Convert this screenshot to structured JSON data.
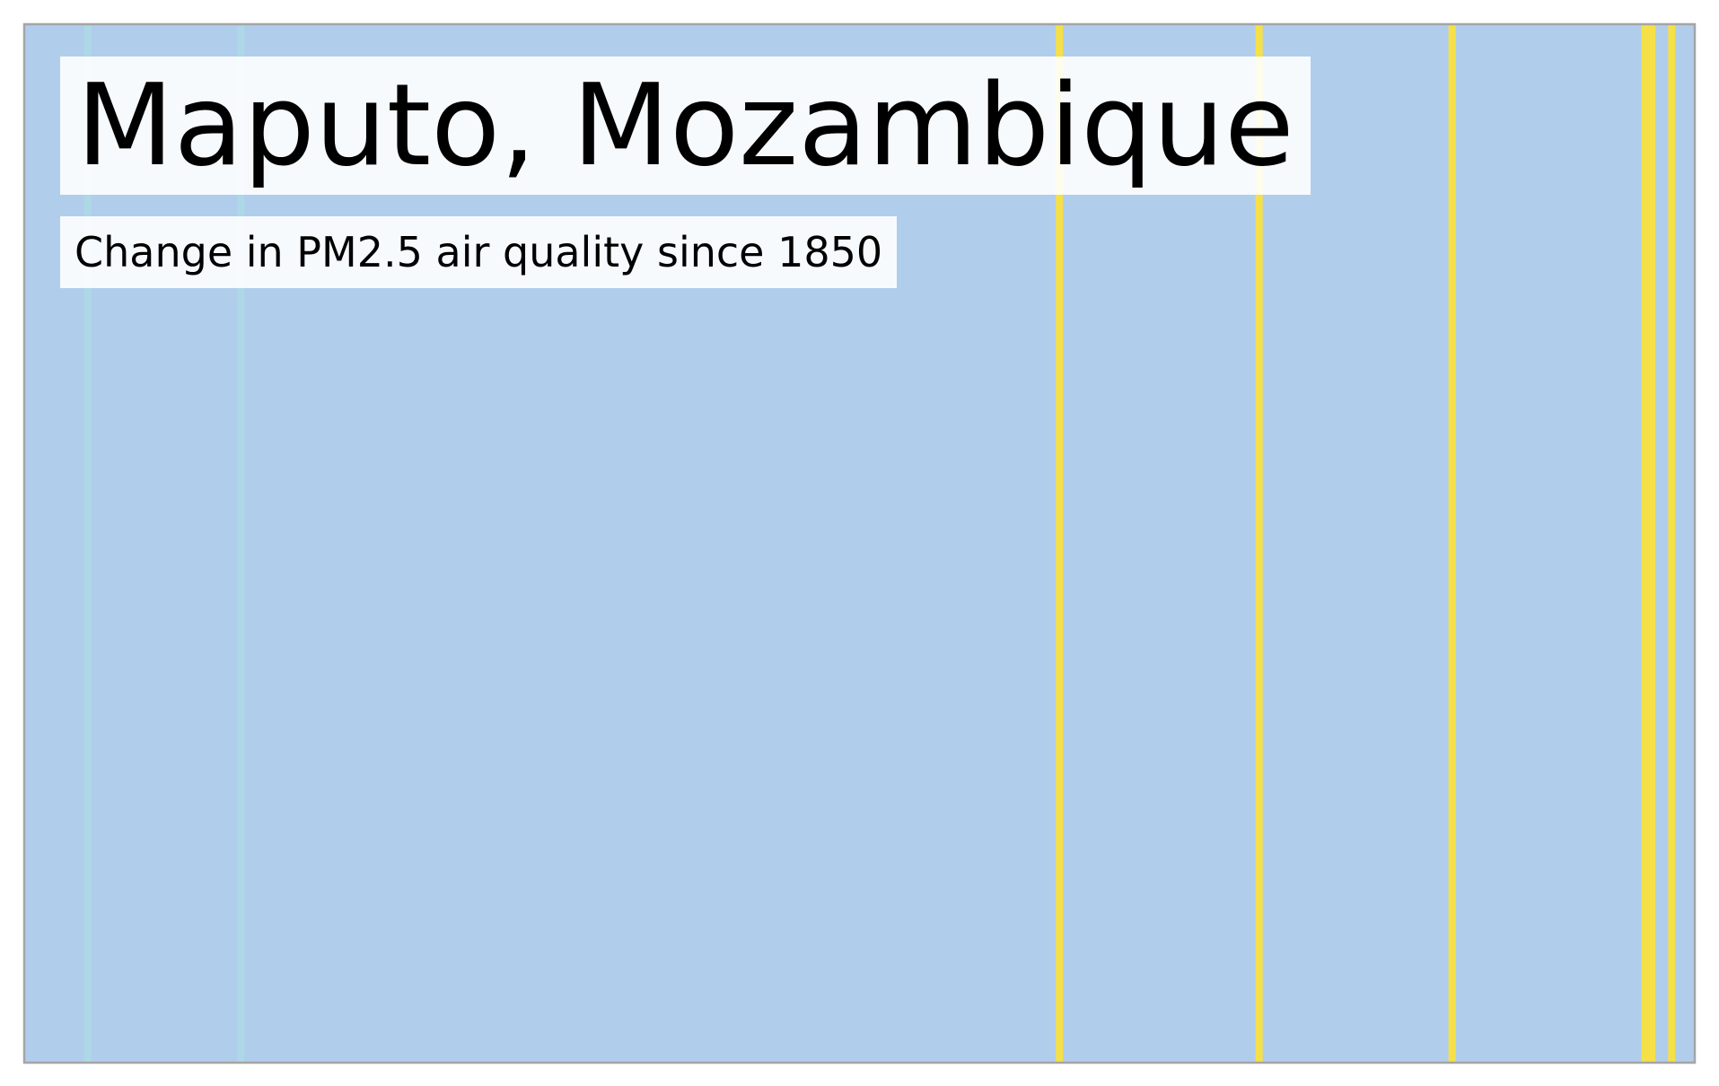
{
  "chart_data": {
    "type": "heatmap",
    "title": "Maputo, Mozambique",
    "subtitle": "Change in PM2.5 air quality since 1850",
    "xlim": [
      1850,
      2100
    ],
    "default_color": "#b0ceec",
    "stripes": [
      {
        "year": 1859,
        "color": "#add8e6"
      },
      {
        "year": 1882,
        "color": "#add8e6"
      },
      {
        "year": 2005,
        "color": "#f6e047"
      },
      {
        "year": 2035,
        "color": "#f6e047"
      },
      {
        "year": 2064,
        "color": "#f6e047"
      },
      {
        "year": 2093,
        "color": "#f6e047"
      },
      {
        "year": 2094,
        "color": "#f6e047"
      },
      {
        "year": 2097,
        "color": "#f6e047"
      }
    ],
    "frame_color": "#a5a5a5"
  }
}
